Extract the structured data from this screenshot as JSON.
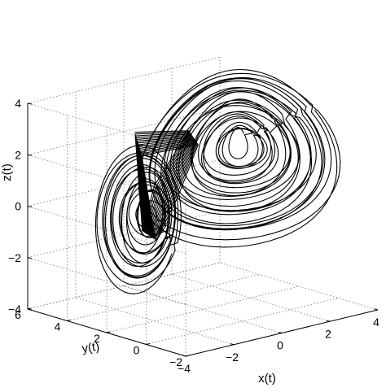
{
  "chart_data": {
    "type": "line",
    "projection": "3d",
    "title": "",
    "xlabel": "x(t)",
    "ylabel": "y(t)",
    "zlabel": "z(t)",
    "xlim": [
      -4,
      4
    ],
    "ylim": [
      -2,
      6
    ],
    "zlim": [
      -4,
      4
    ],
    "x_ticks": [
      -4,
      -2,
      0,
      2,
      4
    ],
    "y_ticks": [
      -2,
      0,
      2,
      4,
      6
    ],
    "z_ticks": [
      -4,
      -2,
      0,
      2,
      4
    ],
    "grid": true,
    "legend": "none",
    "series": [
      {
        "color": "#000000",
        "description_points": [
          [
            2.8,
            3.6,
            -1.4
          ],
          [
            1.2,
            4.6,
            0.6
          ],
          [
            -0.8,
            4.6,
            2.8
          ],
          [
            -2.0,
            3.8,
            3.6
          ],
          [
            -1.6,
            2.6,
            3.2
          ],
          [
            0.6,
            1.8,
            2.0
          ],
          [
            2.4,
            2.2,
            0.0
          ],
          [
            2.6,
            3.4,
            -1.6
          ],
          [
            1.0,
            4.6,
            -0.6
          ],
          [
            -0.4,
            4.2,
            1.2
          ],
          [
            0.0,
            3.0,
            0.6
          ],
          [
            0.2,
            2.4,
            -0.6
          ],
          [
            -0.6,
            1.0,
            -0.8
          ],
          [
            -1.8,
            -0.8,
            -0.4
          ],
          [
            -2.2,
            -1.2,
            -1.8
          ],
          [
            -1.4,
            0.0,
            -2.4
          ],
          [
            -0.2,
            1.4,
            -1.4
          ],
          [
            0.2,
            2.6,
            0.0
          ],
          [
            1.0,
            4.0,
            1.6
          ],
          [
            -0.4,
            4.2,
            2.2
          ],
          [
            -1.2,
            3.2,
            1.6
          ],
          [
            1.6,
            2.0,
            -0.4
          ],
          [
            2.8,
            3.6,
            -1.4
          ]
        ]
      }
    ]
  }
}
